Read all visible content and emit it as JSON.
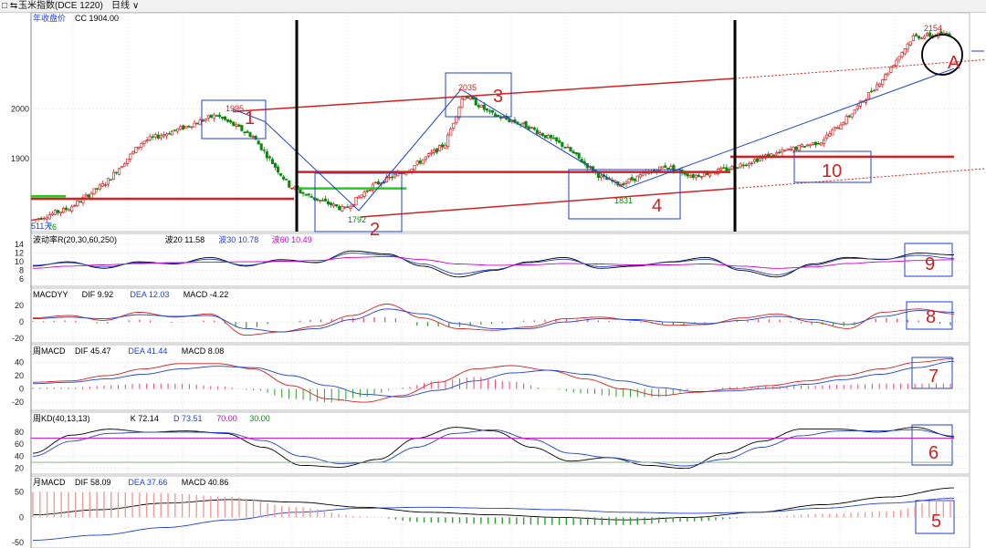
{
  "window": {
    "menu_glyph": "□ ⇆",
    "symbol": "玉米指数(DCE 1220)",
    "period": "日线",
    "dropdown": "∨"
  },
  "colors": {
    "up": "#d42020",
    "down": "#0a8a0a",
    "grid": "#c8c8c8",
    "black": "#000000",
    "blue": "#1f3fd8",
    "magenta": "#d000d0",
    "pink": "#f04070",
    "green_hist": "#2e9e2e",
    "yellow": "#e0e000",
    "green_line": "#22cc22"
  },
  "main": {
    "indicator": "年收盘价",
    "cc_label": "CC 1904.00",
    "left_annotation": "511天",
    "peak_labels": [
      "1995",
      "2035",
      "2154"
    ],
    "trough_labels": [
      "1792",
      "1831",
      "76"
    ],
    "wave_labels": [
      "1",
      "2",
      "3",
      "4",
      "A",
      "10"
    ]
  },
  "panels": {
    "p1": {
      "title": "波动率R(20,30,60,250)",
      "v1": "波20 11.58",
      "v2": "波30 10.78",
      "v3": "波60 10.49",
      "box": "9"
    },
    "p2": {
      "title": "MACDYY",
      "v1": "DIF 9.92",
      "v2": "DEA 12.03",
      "v3": "MACD -4.22",
      "box": "8"
    },
    "p3": {
      "title": "周MACD",
      "v1": "DIF 45.47",
      "v2": "DEA 41.44",
      "v3": "MACD 8.08",
      "box": "7"
    },
    "p4": {
      "title": "周KD(40,13,13)",
      "v1": "K 72.14",
      "v2": "D 73.51",
      "v3": "70.00",
      "v4": "30.00",
      "box": "6"
    },
    "p5": {
      "title": "月MACD",
      "v1": "DIF 58.09",
      "v2": "DEA 37.66",
      "v3": "MACD 40.86",
      "box": "5"
    }
  },
  "chart_data": [
    {
      "type": "candlestick",
      "title": "玉米指数(DCE 1220) 日线",
      "y_ticks": [
        2000,
        1900
      ],
      "ylim": [
        1760,
        2180
      ],
      "x_range_days": 511,
      "series": [
        {
          "name": "close",
          "x": [
            0,
            0.04,
            0.08,
            0.12,
            0.16,
            0.2,
            0.24,
            0.28,
            0.3,
            0.34,
            0.37,
            0.41,
            0.45,
            0.47,
            0.5,
            0.54,
            0.58,
            0.62,
            0.64,
            0.69,
            0.72,
            0.76,
            0.8,
            0.86,
            0.89,
            0.93,
            0.96,
            1.0
          ],
          "values": [
            1776,
            1800,
            1852,
            1935,
            1960,
            1988,
            1945,
            1845,
            1825,
            1797,
            1845,
            1878,
            1930,
            2030,
            1990,
            1965,
            1925,
            1862,
            1848,
            1885,
            1865,
            1880,
            1905,
            1935,
            1985,
            2068,
            2146,
            2152
          ]
        }
      ],
      "annotations": [
        {
          "text": "1995",
          "value": 1995
        },
        {
          "text": "2035",
          "value": 2035
        },
        {
          "text": "2154",
          "value": 2154
        },
        {
          "text": "1792",
          "value": 1792
        },
        {
          "text": "1831",
          "value": 1831
        }
      ],
      "horizontal_levels": [
        {
          "value": 1819,
          "color": "red"
        },
        {
          "value": 1840,
          "color": "green"
        },
        {
          "value": 1873,
          "color": "red"
        },
        {
          "value": 1904,
          "color": "red"
        }
      ]
    },
    {
      "type": "line",
      "title": "波动率R(20,30,60,250)",
      "y_ticks": [
        14,
        12,
        10,
        8,
        6
      ],
      "ylim": [
        5,
        14
      ],
      "series": [
        {
          "name": "波20",
          "values": [
            9,
            10,
            8.5,
            10,
            9.5,
            11,
            9,
            10.5,
            9.8,
            12.5,
            11.8,
            9,
            6.5,
            8,
            10,
            11,
            8.5,
            9,
            10,
            11,
            8,
            6.5,
            9.5,
            11,
            10.5,
            12,
            11.58
          ]
        },
        {
          "name": "波30",
          "values": [
            9.2,
            9.8,
            8.8,
            9.8,
            9.6,
            10.6,
            9.2,
            10.2,
            9.9,
            12,
            11.5,
            9.5,
            7.2,
            8.2,
            9.8,
            10.6,
            8.9,
            9.2,
            9.9,
            10.6,
            8.4,
            7,
            9.2,
            10.8,
            10.6,
            11.5,
            10.78
          ]
        },
        {
          "name": "波60",
          "values": [
            8.5,
            9,
            9.3,
            9.6,
            9.8,
            9.9,
            10,
            10.1,
            10.3,
            11,
            11.2,
            10.5,
            9.5,
            9.2,
            9.3,
            9.6,
            9.5,
            9.3,
            9.3,
            9.5,
            9,
            8.5,
            8.8,
            9.6,
            10,
            10.3,
            10.49
          ]
        }
      ]
    },
    {
      "type": "line+bar",
      "title": "MACDYY",
      "y_ticks": [
        20,
        0,
        -20
      ],
      "ylim": [
        -22,
        28
      ],
      "series": [
        {
          "name": "DIF",
          "values": [
            5,
            8,
            2,
            12,
            6,
            10,
            -16,
            -12,
            -5,
            8,
            22,
            5,
            -8,
            -10,
            -6,
            4,
            6,
            2,
            -4,
            -3,
            5,
            10,
            0,
            -8,
            12,
            16,
            9.92
          ]
        },
        {
          "name": "DEA",
          "values": [
            4,
            6,
            4,
            9,
            7,
            8,
            -8,
            -12,
            -8,
            3,
            16,
            10,
            -2,
            -8,
            -8,
            0,
            4,
            3,
            0,
            -2,
            2,
            7,
            3,
            -3,
            7,
            14,
            12.03
          ]
        },
        {
          "name": "MACD",
          "values": [
            1,
            2,
            -2,
            3,
            -1,
            2,
            -8,
            0,
            3,
            5,
            6,
            -5,
            -6,
            -2,
            2,
            4,
            2,
            -1,
            -4,
            -1,
            3,
            3,
            -3,
            -5,
            5,
            2,
            -4.22
          ]
        }
      ]
    },
    {
      "type": "line+bar",
      "title": "周MACD",
      "y_ticks": [
        40,
        20,
        0,
        -20
      ],
      "ylim": [
        -28,
        50
      ],
      "series": [
        {
          "name": "DIF",
          "values": [
            10,
            12,
            20,
            30,
            38,
            38,
            30,
            5,
            -15,
            -20,
            -10,
            10,
            30,
            35,
            28,
            15,
            0,
            -10,
            -5,
            0,
            5,
            12,
            20,
            30,
            40,
            45.47
          ]
        },
        {
          "name": "DEA",
          "values": [
            8,
            10,
            15,
            22,
            30,
            34,
            32,
            20,
            5,
            -8,
            -12,
            -2,
            12,
            24,
            28,
            22,
            12,
            2,
            -4,
            -3,
            1,
            7,
            14,
            22,
            32,
            41.44
          ]
        },
        {
          "name": "MACD",
          "values": [
            2,
            2,
            5,
            8,
            8,
            4,
            -2,
            -15,
            -20,
            -12,
            2,
            12,
            18,
            11,
            0,
            -7,
            -12,
            -12,
            -1,
            3,
            4,
            5,
            6,
            8,
            8,
            8.08
          ]
        }
      ]
    },
    {
      "type": "line",
      "title": "周KD(40,13,13)",
      "y_ticks": [
        80,
        60,
        40,
        20
      ],
      "ylim": [
        15,
        95
      ],
      "series": [
        {
          "name": "K",
          "values": [
            45,
            75,
            85,
            80,
            82,
            78,
            55,
            25,
            22,
            35,
            70,
            88,
            82,
            55,
            32,
            38,
            25,
            20,
            45,
            65,
            85,
            85,
            80,
            88,
            72.14
          ]
        },
        {
          "name": "D",
          "values": [
            40,
            65,
            78,
            80,
            80,
            79,
            66,
            40,
            28,
            30,
            55,
            78,
            84,
            68,
            45,
            38,
            30,
            24,
            35,
            55,
            74,
            82,
            82,
            84,
            73.51
          ]
        }
      ],
      "reference_lines": [
        70,
        30
      ]
    },
    {
      "type": "line+bar",
      "title": "月MACD",
      "y_ticks": [
        50,
        0,
        -50
      ],
      "ylim": [
        -55,
        60
      ],
      "series": [
        {
          "name": "DIF",
          "values": [
            5,
            15,
            28,
            35,
            30,
            20,
            10,
            5,
            0,
            -5,
            0,
            10,
            25,
            40,
            58.09
          ]
        },
        {
          "name": "DEA",
          "values": [
            -45,
            -35,
            -20,
            -5,
            10,
            18,
            20,
            18,
            15,
            10,
            8,
            10,
            18,
            28,
            37.66
          ]
        },
        {
          "name": "MACD",
          "values": [
            50,
            50,
            48,
            40,
            20,
            2,
            -10,
            -13,
            -15,
            -15,
            -8,
            0,
            7,
            12,
            40.86
          ]
        }
      ]
    }
  ]
}
